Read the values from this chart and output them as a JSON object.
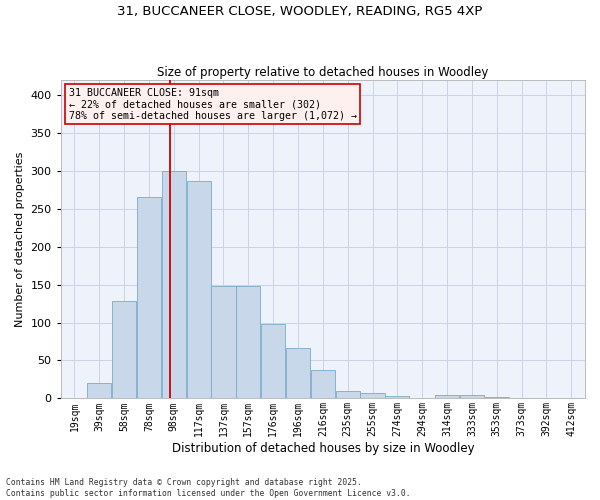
{
  "title1": "31, BUCCANEER CLOSE, WOODLEY, READING, RG5 4XP",
  "title2": "Size of property relative to detached houses in Woodley",
  "xlabel": "Distribution of detached houses by size in Woodley",
  "ylabel": "Number of detached properties",
  "categories": [
    "19sqm",
    "39sqm",
    "58sqm",
    "78sqm",
    "98sqm",
    "117sqm",
    "137sqm",
    "157sqm",
    "176sqm",
    "196sqm",
    "216sqm",
    "235sqm",
    "255sqm",
    "274sqm",
    "294sqm",
    "314sqm",
    "333sqm",
    "353sqm",
    "373sqm",
    "392sqm",
    "412sqm"
  ],
  "values": [
    1,
    20,
    128,
    265,
    300,
    287,
    148,
    148,
    98,
    67,
    37,
    10,
    7,
    3,
    1,
    5,
    4,
    2,
    1,
    0,
    0
  ],
  "bar_color": "#c8d8ea",
  "bar_edge_color": "#7aaac8",
  "grid_color": "#c8d4e8",
  "background_color": "#eef2fb",
  "annotation_line_color": "#cc0000",
  "annotation_box_text": "31 BUCCANEER CLOSE: 91sqm\n← 22% of detached houses are smaller (302)\n78% of semi-detached houses are larger (1,072) →",
  "annotation_box_facecolor": "#fff0f0",
  "annotation_box_edgecolor": "#cc0000",
  "ylim": [
    0,
    420
  ],
  "yticks": [
    0,
    50,
    100,
    150,
    200,
    250,
    300,
    350,
    400
  ],
  "red_line_index": 3.85,
  "footnote1": "Contains HM Land Registry data © Crown copyright and database right 2025.",
  "footnote2": "Contains public sector information licensed under the Open Government Licence v3.0."
}
